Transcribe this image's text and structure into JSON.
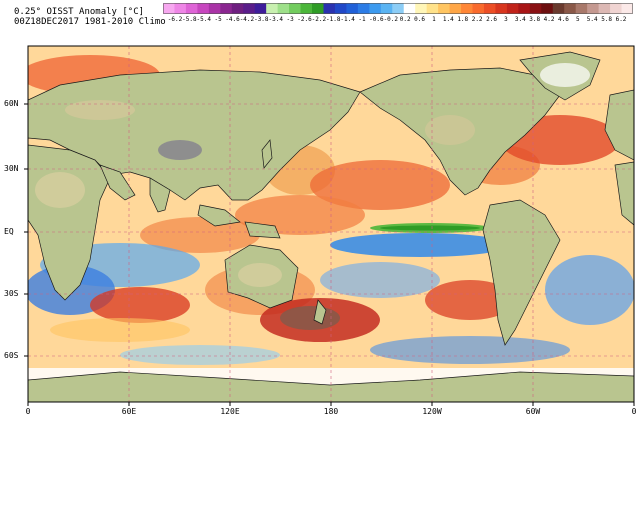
{
  "title": {
    "line1": "0.25° OISST Anomaly [°C]",
    "line2": "00Z18DEC2017 1981-2010 Climo"
  },
  "colorbar": {
    "labels": [
      "-6.2",
      "-5.8",
      "-5.4",
      "-5",
      "-4.6",
      "-4.2",
      "-3.8",
      "-3.4",
      "-3",
      "-2.6",
      "-2.2",
      "-1.8",
      "-1.4",
      "-1",
      "-0.6",
      "-0.2",
      "0.2",
      "0.6",
      "1",
      "1.4",
      "1.8",
      "2.2",
      "2.6",
      "3",
      "3.4",
      "3.8",
      "4.2",
      "4.6",
      "5",
      "5.4",
      "5.8",
      "6.2"
    ],
    "colors": [
      "#f7a8f0",
      "#ee86e6",
      "#de64d6",
      "#c746bf",
      "#a933a6",
      "#8a2690",
      "#6e1f80",
      "#5a1d8a",
      "#3e1d9a",
      "#2a32b0",
      "#2048c8",
      "#2060d8",
      "#2c7ce6",
      "#3c9aef",
      "#5ab4f3",
      "#8ccdf6",
      "#ffffff",
      "#fff6b8",
      "#ffe28a",
      "#ffc561",
      "#ffa646",
      "#ff8636",
      "#f96a2c",
      "#ec4e25",
      "#d8361e",
      "#c1231a",
      "#a81516",
      "#8a1114",
      "#6d0f10",
      "#6a3a2e",
      "#8a5848",
      "#a8786a",
      "#c49890",
      "#dcb8b4",
      "#f0d4d2",
      "#fbe9e8"
    ],
    "green_colors": [
      "#c8f0b0",
      "#9ee08a",
      "#72cc5e",
      "#4bb63a",
      "#2f9c26"
    ]
  },
  "map": {
    "lat_labels": [
      "60N",
      "30N",
      "EQ",
      "30S",
      "60S"
    ],
    "lon_labels": [
      "0",
      "60E",
      "120E",
      "180",
      "120W",
      "60W",
      "0"
    ]
  }
}
